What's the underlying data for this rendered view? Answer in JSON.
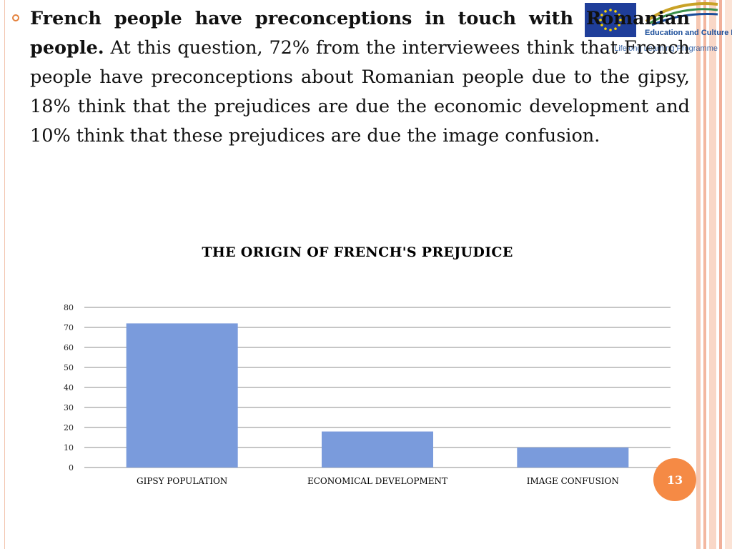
{
  "slide": {
    "heading_bold": "French people have preconceptions in touch with Romanian people.",
    "body": " At this question, 72% from the interviewees think that French people have preconceptions about Romanian people due to the gipsy, 18% think that the prejudices are due the economic development and 10% think that these prejudices are due the image confusion.",
    "page_number": "13"
  },
  "logo": {
    "line1": "Education and Culture DG",
    "line2": "Lifelong Learning Programme"
  },
  "colors": {
    "bar": "#7a9bdc",
    "accent": "#f58a45",
    "bullet": "#e4823e"
  },
  "chart_data": {
    "type": "bar",
    "title": "THE ORIGIN OF FRENCH'S PREJUDICE",
    "categories": [
      "GIPSY POPULATION",
      "ECONOMICAL DEVELOPMENT",
      "IMAGE CONFUSION"
    ],
    "values": [
      72,
      18,
      10
    ],
    "xlabel": "",
    "ylabel": "",
    "ylim": [
      0,
      80
    ],
    "yticks": [
      0,
      10,
      20,
      30,
      40,
      50,
      60,
      70,
      80
    ],
    "grid": true,
    "legend": "none"
  }
}
